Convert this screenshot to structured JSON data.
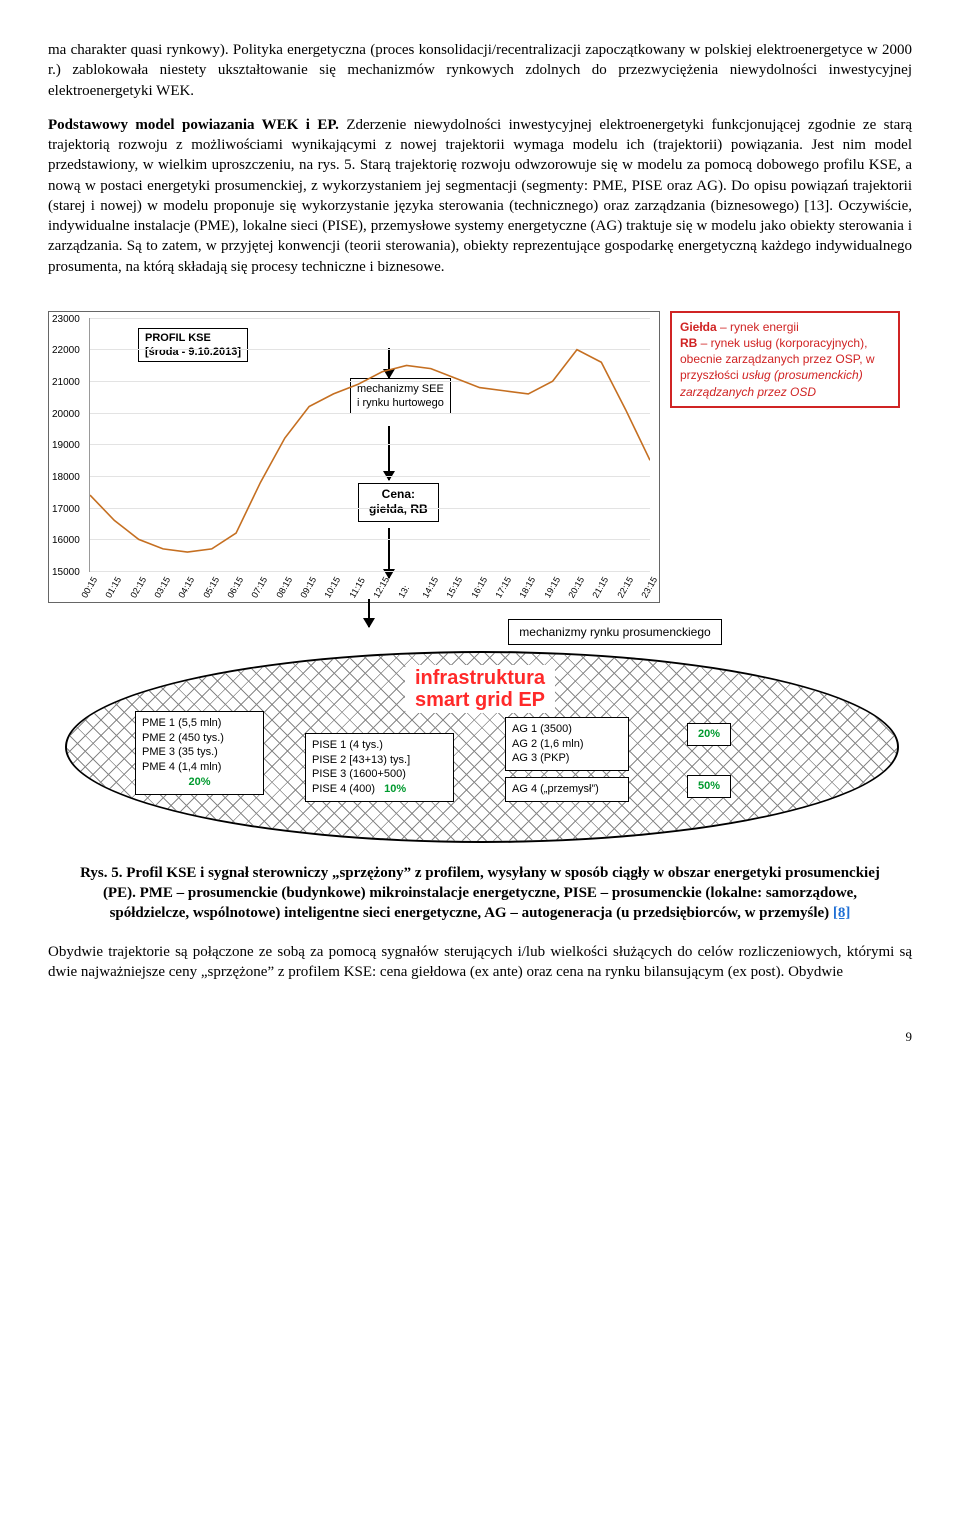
{
  "para1": "ma charakter quasi rynkowy). Polityka energetyczna (proces konsolidacji/recentralizacji zapoczątkowany w polskiej elektroenergetyce w 2000 r.) zablokowała niestety ukształtowanie się mechanizmów rynkowych zdolnych do przezwyciężenia niewydolności inwestycyjnej elektroenergetyki WEK.",
  "para2": "Podstawowy model powiazania WEK i EP. Zderzenie niewydolności inwestycyjnej elektroenergetyki funkcjonującej zgodnie ze starą trajektorią rozwoju z możliwościami wynikającymi z nowej trajektorii wymaga modelu ich (trajektorii) powiązania. Jest nim model przedstawiony, w wielkim uproszczeniu, na rys. 5. Starą trajektorię rozwoju odwzorowuje się w modelu za pomocą dobowego profilu KSE, a nową w postaci energetyki prosumenckiej, z wykorzystaniem jej segmentacji (segmenty: PME, PISE oraz AG). Do opisu powiązań trajektorii (starej i nowej) w modelu proponuje się wykorzystanie języka sterowania (technicznego) oraz zarządzania (biznesowego) [13]. Oczywiście, indywidualne instalacje (PME), lokalne sieci (PISE), przemysłowe systemy energetyczne (AG) traktuje się w modelu jako obiekty sterowania i zarządzania. Są to zatem, w przyjętej konwencji (teorii sterowania), obiekty reprezentujące gospodarkę energetyczną każdego indywidualnego prosumenta, na którą składają się procesy techniczne i biznesowe.",
  "para2_bold_span": "Podstawowy model powiazania WEK i EP.",
  "chart": {
    "ymin": 15000,
    "ymax": 23000,
    "ystep": 1000,
    "profil": [
      "PROFIL KSE",
      "[środa - 9.10.2013]"
    ],
    "see_box": "mechanizmy SEE\ni rynku hurtowego",
    "cena_box": "Cena:\ngiełda, RB",
    "x_ticks": [
      "00:15",
      "01:15",
      "02:15",
      "03:15",
      "04:15",
      "05:15",
      "06:15",
      "07:15",
      "08:15",
      "09:15",
      "10:15",
      "11:15",
      "12:15",
      "13:",
      "14:15",
      "15:15",
      "16:15",
      "17:15",
      "18:15",
      "19:15",
      "20:15",
      "21:15",
      "22:15",
      "23:15"
    ],
    "values": [
      17400,
      16600,
      16000,
      15700,
      15600,
      15700,
      16200,
      17800,
      19200,
      20200,
      20600,
      20900,
      21300,
      21500,
      21400,
      21100,
      20800,
      20700,
      20600,
      21000,
      22000,
      21600,
      20100,
      18500
    ],
    "legend": "Giełda – rynek energii\nRB – rynek usług (korporacyjnych), obecnie zarządzanych przez OSP, w przyszłości usług (prosumenckich) zarządzanych przez OSD",
    "legend_color": "#d02424",
    "line_color": "#c56f21"
  },
  "mech_pro": "mechanizmy rynku prosumenckiego",
  "ellipse": {
    "title": "infrastruktura\nsmart grid EP",
    "title_color": "#ff2a2a",
    "pme": {
      "lines": [
        "PME 1 (5,5 mln)",
        "PME 2 (450 tys.)",
        "PME 3 (35 tys.)",
        "PME 4 (1,4 mln)"
      ],
      "pct": "20%"
    },
    "pise": {
      "lines": [
        "PISE 1 (4 tys.)",
        "PISE 2 [43+13) tys.]",
        "PISE 3 (1600+500)",
        "PISE 4 (400)"
      ],
      "pct": "10%"
    },
    "ag_top": {
      "lines": [
        "AG 1 (3500)",
        "AG 2 (1,6 mln)",
        "AG 3 (PKP)"
      ],
      "pct": "20%"
    },
    "ag_bot": {
      "line": "AG 4 („przemysł”)",
      "pct": "50%"
    }
  },
  "caption": {
    "label": "Rys. 5. Profil KSE i sygnał sterowniczy „sprzężony” z profilem, wysyłany w sposób ciągły w obszar energetyki prosumenckiej (PE). PME – prosumenckie (budynkowe) mikroinstalacje energetyczne, PISE – prosumenckie (lokalne: samorządowe, spółdzielcze, wspólnotowe) inteligentne sieci energetyczne, AG – autogeneracja (u przedsiębiorców, w przemyśle) ",
    "ref": "[8]"
  },
  "para3": "Obydwie trajektorie są połączone ze sobą za pomocą sygnałów sterujących i/lub wielkości służących do celów rozliczeniowych, którymi są dwie najważniejsze ceny „sprzężone” z profilem KSE: cena giełdowa (ex ante) oraz cena na rynku bilansującym (ex post). Obydwie",
  "page": "9"
}
